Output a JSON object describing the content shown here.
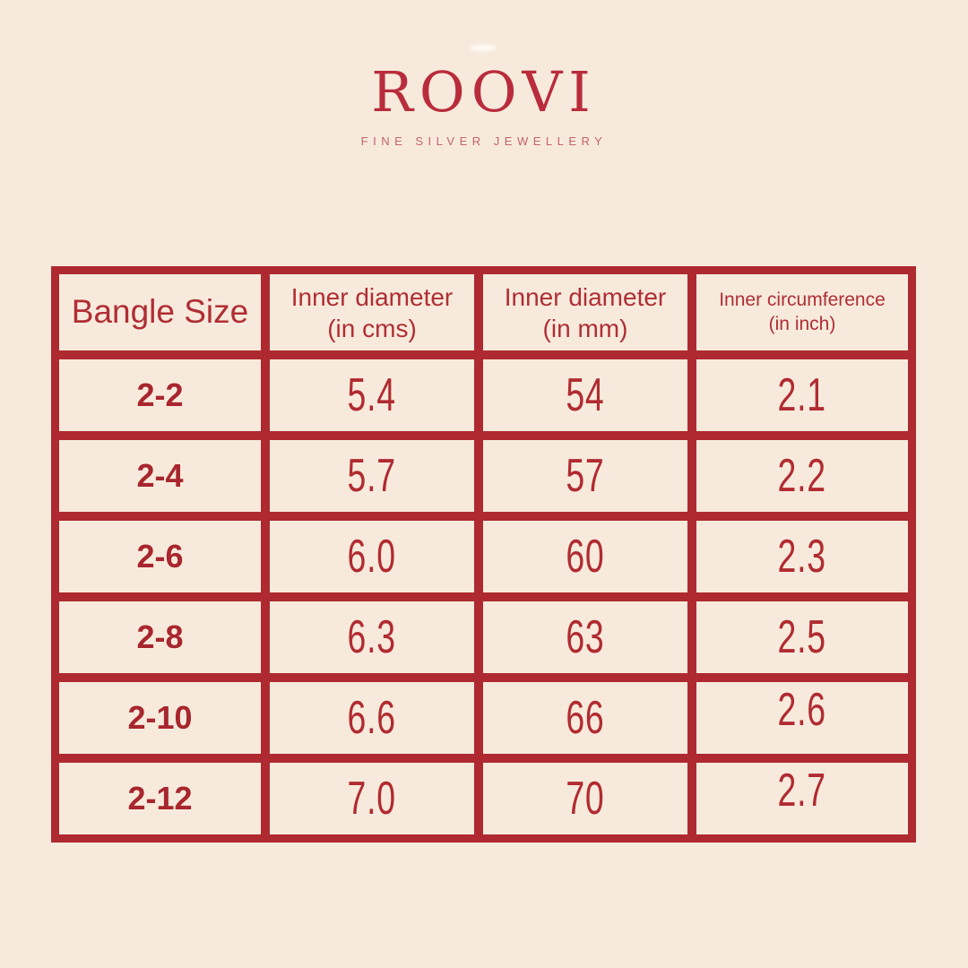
{
  "brand": {
    "name": "ROOVI",
    "tagline": "FINE SILVER JEWELLERY",
    "logo_color": "#B92C3B",
    "tagline_color": "#C6626B"
  },
  "colors": {
    "background": "#F7EADC",
    "table_grid_red": "#AE2A30",
    "text_red": "#B02E34"
  },
  "table": {
    "headers": [
      {
        "line1": "Bangle Size",
        "line2": ""
      },
      {
        "line1": "Inner diameter",
        "line2": "(in cms)"
      },
      {
        "line1": "Inner diameter",
        "line2": "(in mm)"
      },
      {
        "line1": "Inner circumference",
        "line2": "(in inch)"
      }
    ],
    "rows": [
      {
        "size": "2-2",
        "cm": "5.4",
        "mm": "54",
        "inch": "2.1"
      },
      {
        "size": "2-4",
        "cm": "5.7",
        "mm": "57",
        "inch": "2.2"
      },
      {
        "size": "2-6",
        "cm": "6.0",
        "mm": "60",
        "inch": "2.3"
      },
      {
        "size": "2-8",
        "cm": "6.3",
        "mm": "63",
        "inch": "2.5"
      },
      {
        "size": "2-10",
        "cm": "6.6",
        "mm": "66",
        "inch": "2.6"
      },
      {
        "size": "2-12",
        "cm": "7.0",
        "mm": "70",
        "inch": "2.7"
      }
    ]
  },
  "chart_data": {
    "type": "table",
    "columns": [
      "Bangle Size",
      "Inner diameter (in cms)",
      "Inner diameter (in mm)",
      "Inner circumference (in inch)"
    ],
    "rows": [
      [
        "2-2",
        5.4,
        54,
        2.1
      ],
      [
        "2-4",
        5.7,
        57,
        2.2
      ],
      [
        "2-6",
        6.0,
        60,
        2.3
      ],
      [
        "2-8",
        6.3,
        63,
        2.5
      ],
      [
        "2-10",
        6.6,
        66,
        2.6
      ],
      [
        "2-12",
        7.0,
        70,
        2.7
      ]
    ]
  }
}
